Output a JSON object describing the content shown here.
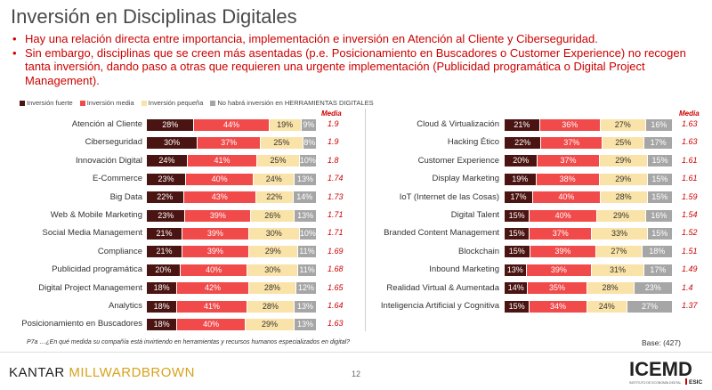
{
  "title": "Inversión en Disciplinas Digitales",
  "bullets": [
    "Hay una relación directa entre importancia, implementación e inversión en Atención al Cliente y Ciberseguridad.",
    "Sin embargo, disciplinas que se creen más asentadas (p.e. Posicionamiento en Buscadores o Customer Experience) no recogen tanta inversión, dando paso a otras que requieren una urgente implementación (Publicidad programática o Digital Project Management)."
  ],
  "legend": [
    {
      "label": "Inversión fuerte",
      "color": "#4a1412"
    },
    {
      "label": "Inversión media",
      "color": "#f04a4a"
    },
    {
      "label": "Inversión pequeña",
      "color": "#fae3a8"
    },
    {
      "label": "No habrá inversión en HERRAMIENTAS DIGITALES",
      "color": "#a6a6a6"
    }
  ],
  "media_header": "Media",
  "footnote": "P7a …¿En qué medida su compañía está invirtiendo en herramientas y recursos humanos especializados en digital?",
  "base": "Base: (427)",
  "page_number": "12",
  "logos": {
    "kantar_part1": "KANTAR ",
    "kantar_part2": "MILLWARDBROWN",
    "icemd": "ICEMD",
    "icemd_sub": "ESIC",
    "icemd_small": "INSTITUTO DE ECONOMÍA DIGITAL"
  },
  "chart_data": [
    {
      "type": "bar",
      "stacked": true,
      "orientation": "horizontal",
      "series_names": [
        "Inversión fuerte",
        "Inversión media",
        "Inversión pequeña",
        "No habrá inversión en HERRAMIENTAS DIGITALES"
      ],
      "categories": [
        "Atención al Cliente",
        "Ciberseguridad",
        "Innovación Digital",
        "E-Commerce",
        "Big Data",
        "Web & Mobile Marketing",
        "Social Media Management",
        "Compliance",
        "Publicidad programática",
        "Digital Project Management",
        "Analytics",
        "Posicionamiento en Buscadores"
      ],
      "values": [
        [
          28,
          44,
          19,
          9
        ],
        [
          30,
          37,
          25,
          8
        ],
        [
          24,
          41,
          25,
          10
        ],
        [
          23,
          40,
          24,
          13
        ],
        [
          22,
          43,
          22,
          14
        ],
        [
          23,
          39,
          26,
          13
        ],
        [
          21,
          39,
          30,
          10
        ],
        [
          21,
          39,
          29,
          11
        ],
        [
          20,
          40,
          30,
          11
        ],
        [
          18,
          42,
          28,
          12
        ],
        [
          18,
          41,
          28,
          13
        ],
        [
          18,
          40,
          29,
          13
        ]
      ],
      "media": [
        "1.9",
        "1.9",
        "1.8",
        "1.74",
        "1.73",
        "1.71",
        "1.71",
        "1.69",
        "1.68",
        "1.65",
        "1.64",
        "1.63"
      ]
    },
    {
      "type": "bar",
      "stacked": true,
      "orientation": "horizontal",
      "series_names": [
        "Inversión fuerte",
        "Inversión media",
        "Inversión pequeña",
        "No habrá inversión en HERRAMIENTAS DIGITALES"
      ],
      "categories": [
        "Cloud & Virtualización",
        "Hacking Ético",
        "Customer Experience",
        "Display Marketing",
        "IoT (Internet de las Cosas)",
        "Digital Talent",
        "Branded Content Management",
        "Blockchain",
        "Inbound Marketing",
        "Realidad Virtual & Aumentada",
        "Inteligencia Artificial y Cognitiva"
      ],
      "values": [
        [
          21,
          36,
          27,
          16
        ],
        [
          22,
          37,
          25,
          17
        ],
        [
          20,
          37,
          29,
          15
        ],
        [
          19,
          38,
          29,
          15
        ],
        [
          17,
          40,
          28,
          15
        ],
        [
          15,
          40,
          29,
          16
        ],
        [
          15,
          37,
          33,
          15
        ],
        [
          15,
          39,
          27,
          18
        ],
        [
          13,
          39,
          31,
          17
        ],
        [
          14,
          35,
          28,
          23
        ],
        [
          15,
          34,
          24,
          27
        ]
      ],
      "media": [
        "1.63",
        "1.63",
        "1.61",
        "1.61",
        "1.59",
        "1.54",
        "1.52",
        "1.51",
        "1.49",
        "1.4",
        "1.37"
      ]
    }
  ]
}
